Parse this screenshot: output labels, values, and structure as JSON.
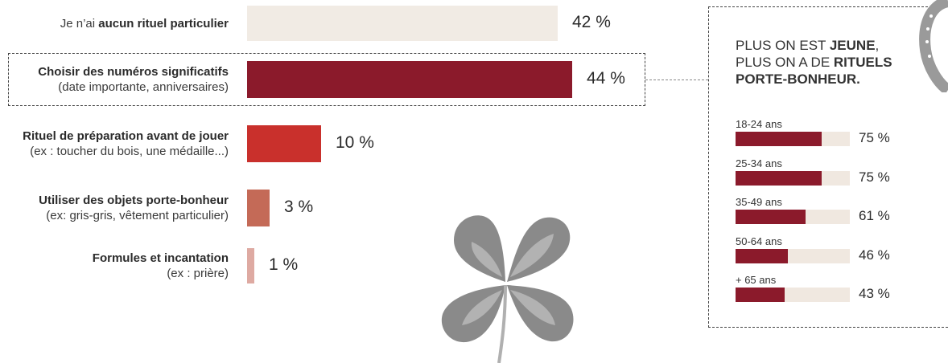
{
  "chart_data": {
    "type": "bar",
    "orientation": "horizontal",
    "rows": [
      {
        "lines": [
          [
            {
              "t": "Je n’ai ",
              "b": false
            },
            {
              "t": "aucun rituel particulier",
              "b": true
            }
          ]
        ],
        "value": 42,
        "value_label": "42 %",
        "color": "#f1ebe4"
      },
      {
        "lines": [
          [
            {
              "t": "Choisir des numéros significatifs",
              "b": true
            }
          ],
          [
            {
              "t": "(date importante, anniversaires)",
              "b": false
            }
          ]
        ],
        "value": 44,
        "value_label": "44 %",
        "color": "#8b1a2b",
        "highlighted": true
      },
      {
        "lines": [
          [
            {
              "t": "Rituel de préparation avant de jouer",
              "b": true
            }
          ],
          [
            {
              "t": "(ex : toucher du bois, une médaille...)",
              "b": false
            }
          ]
        ],
        "value": 10,
        "value_label": "10 %",
        "color": "#c9302c"
      },
      {
        "lines": [
          [
            {
              "t": "Utiliser des objets porte-bonheur",
              "b": true
            }
          ],
          [
            {
              "t": "(ex: gris-gris, vêtement particulier)",
              "b": false
            }
          ]
        ],
        "value": 3,
        "value_label": "3 %",
        "color": "#c46a57"
      },
      {
        "lines": [
          [
            {
              "t": "Formules et incantation",
              "b": true
            }
          ],
          [
            {
              "t": "(ex : prière)",
              "b": false
            }
          ]
        ],
        "value": 1,
        "value_label": "1 %",
        "color": "#deaaa2"
      }
    ]
  },
  "side_panel": {
    "title": [
      [
        {
          "t": "PLUS ON EST ",
          "b": false
        },
        {
          "t": "JEUNE",
          "b": true
        },
        {
          "t": ",",
          "b": false
        }
      ],
      [
        {
          "t": "PLUS ON A DE ",
          "b": false
        },
        {
          "t": "RITUELS",
          "b": true
        }
      ],
      [
        {
          "t": "PORTE-BONHEUR.",
          "b": true
        }
      ]
    ],
    "age_groups": [
      {
        "label": "18-24 ans",
        "value": 75,
        "value_label": "75 %"
      },
      {
        "label": "25-34 ans",
        "value": 75,
        "value_label": "75 %"
      },
      {
        "label": "35-49 ans",
        "value": 61,
        "value_label": "61 %"
      },
      {
        "label": "50-64 ans",
        "value": 46,
        "value_label": "46 %"
      },
      {
        "label": "+ 65 ans",
        "value": 43,
        "value_label": "43 %"
      }
    ],
    "fill_color": "#8b1a2b",
    "track_color": "#f0e8e0"
  },
  "decorations": [
    "four-leaf-clover",
    "horseshoe"
  ]
}
